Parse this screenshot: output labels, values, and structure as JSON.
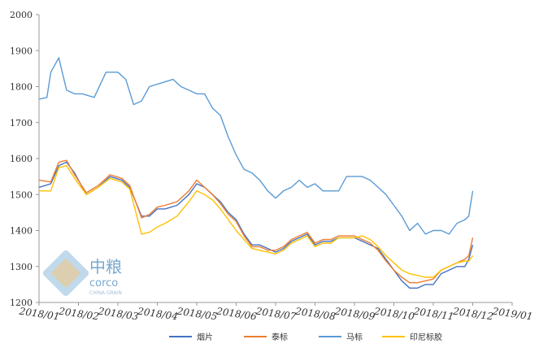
{
  "chart_data": {
    "type": "line",
    "ylim": [
      1200,
      2000
    ],
    "yticks": [
      1200,
      1300,
      1400,
      1500,
      1600,
      1700,
      1800,
      1900,
      2000
    ],
    "xticks": [
      "2018/01",
      "2018/02",
      "2018/03",
      "2018/04",
      "2018/05",
      "2018/06",
      "2018/07",
      "2018/08",
      "2018/09",
      "2018/10",
      "2018/11",
      "2018/12",
      "2019/01"
    ],
    "grid": false,
    "legend_position": "bottom",
    "series": [
      {
        "name": "烟片",
        "color": "#4472C4",
        "values": [
          [
            0,
            1520
          ],
          [
            0.3,
            1530
          ],
          [
            0.5,
            1580
          ],
          [
            0.7,
            1590
          ],
          [
            0.9,
            1560
          ],
          [
            1.2,
            1500
          ],
          [
            1.5,
            1520
          ],
          [
            1.8,
            1550
          ],
          [
            2.1,
            1540
          ],
          [
            2.3,
            1520
          ],
          [
            2.6,
            1440
          ],
          [
            2.8,
            1440
          ],
          [
            3.0,
            1460
          ],
          [
            3.2,
            1460
          ],
          [
            3.5,
            1470
          ],
          [
            3.8,
            1500
          ],
          [
            4.0,
            1530
          ],
          [
            4.2,
            1520
          ],
          [
            4.4,
            1500
          ],
          [
            4.6,
            1480
          ],
          [
            4.8,
            1450
          ],
          [
            5.0,
            1430
          ],
          [
            5.2,
            1390
          ],
          [
            5.4,
            1360
          ],
          [
            5.6,
            1360
          ],
          [
            5.8,
            1350
          ],
          [
            6.0,
            1340
          ],
          [
            6.2,
            1350
          ],
          [
            6.4,
            1370
          ],
          [
            6.6,
            1380
          ],
          [
            6.8,
            1390
          ],
          [
            7.0,
            1360
          ],
          [
            7.2,
            1370
          ],
          [
            7.4,
            1370
          ],
          [
            7.6,
            1380
          ],
          [
            7.8,
            1380
          ],
          [
            8.0,
            1380
          ],
          [
            8.2,
            1370
          ],
          [
            8.4,
            1360
          ],
          [
            8.6,
            1350
          ],
          [
            8.8,
            1320
          ],
          [
            9.0,
            1290
          ],
          [
            9.2,
            1260
          ],
          [
            9.4,
            1240
          ],
          [
            9.6,
            1240
          ],
          [
            9.8,
            1250
          ],
          [
            10.0,
            1250
          ],
          [
            10.2,
            1280
          ],
          [
            10.4,
            1290
          ],
          [
            10.6,
            1300
          ],
          [
            10.8,
            1300
          ],
          [
            10.9,
            1320
          ],
          [
            11.0,
            1360
          ]
        ]
      },
      {
        "name": "泰标",
        "color": "#ED7D31",
        "values": [
          [
            0,
            1540
          ],
          [
            0.3,
            1535
          ],
          [
            0.5,
            1590
          ],
          [
            0.7,
            1595
          ],
          [
            0.9,
            1555
          ],
          [
            1.2,
            1505
          ],
          [
            1.5,
            1525
          ],
          [
            1.8,
            1555
          ],
          [
            2.1,
            1545
          ],
          [
            2.3,
            1525
          ],
          [
            2.6,
            1435
          ],
          [
            2.8,
            1445
          ],
          [
            3.0,
            1465
          ],
          [
            3.2,
            1470
          ],
          [
            3.5,
            1480
          ],
          [
            3.8,
            1510
          ],
          [
            4.0,
            1540
          ],
          [
            4.2,
            1520
          ],
          [
            4.4,
            1500
          ],
          [
            4.6,
            1475
          ],
          [
            4.8,
            1445
          ],
          [
            5.0,
            1425
          ],
          [
            5.2,
            1385
          ],
          [
            5.4,
            1355
          ],
          [
            5.6,
            1355
          ],
          [
            5.8,
            1345
          ],
          [
            6.0,
            1345
          ],
          [
            6.2,
            1355
          ],
          [
            6.4,
            1375
          ],
          [
            6.6,
            1385
          ],
          [
            6.8,
            1395
          ],
          [
            7.0,
            1365
          ],
          [
            7.2,
            1375
          ],
          [
            7.4,
            1375
          ],
          [
            7.6,
            1385
          ],
          [
            7.8,
            1385
          ],
          [
            8.0,
            1385
          ],
          [
            8.2,
            1375
          ],
          [
            8.4,
            1365
          ],
          [
            8.6,
            1345
          ],
          [
            8.8,
            1315
          ],
          [
            9.0,
            1290
          ],
          [
            9.2,
            1270
          ],
          [
            9.4,
            1255
          ],
          [
            9.6,
            1255
          ],
          [
            9.8,
            1260
          ],
          [
            10.0,
            1265
          ],
          [
            10.2,
            1290
          ],
          [
            10.4,
            1300
          ],
          [
            10.6,
            1310
          ],
          [
            10.8,
            1320
          ],
          [
            10.9,
            1330
          ],
          [
            11.0,
            1380
          ]
        ]
      },
      {
        "name": "马标",
        "color": "#5B9BD5",
        "values": [
          [
            0,
            1765
          ],
          [
            0.2,
            1770
          ],
          [
            0.3,
            1840
          ],
          [
            0.5,
            1880
          ],
          [
            0.7,
            1790
          ],
          [
            0.9,
            1780
          ],
          [
            1.1,
            1780
          ],
          [
            1.4,
            1770
          ],
          [
            1.7,
            1840
          ],
          [
            2.0,
            1840
          ],
          [
            2.2,
            1820
          ],
          [
            2.4,
            1750
          ],
          [
            2.6,
            1760
          ],
          [
            2.8,
            1800
          ],
          [
            3.1,
            1810
          ],
          [
            3.4,
            1820
          ],
          [
            3.6,
            1800
          ],
          [
            3.8,
            1790
          ],
          [
            4.0,
            1780
          ],
          [
            4.2,
            1780
          ],
          [
            4.4,
            1740
          ],
          [
            4.6,
            1720
          ],
          [
            4.8,
            1660
          ],
          [
            5.0,
            1610
          ],
          [
            5.2,
            1570
          ],
          [
            5.4,
            1560
          ],
          [
            5.6,
            1540
          ],
          [
            5.8,
            1510
          ],
          [
            6.0,
            1490
          ],
          [
            6.2,
            1510
          ],
          [
            6.4,
            1520
          ],
          [
            6.6,
            1540
          ],
          [
            6.8,
            1520
          ],
          [
            7.0,
            1530
          ],
          [
            7.2,
            1510
          ],
          [
            7.4,
            1510
          ],
          [
            7.6,
            1510
          ],
          [
            7.8,
            1550
          ],
          [
            8.0,
            1550
          ],
          [
            8.2,
            1550
          ],
          [
            8.4,
            1540
          ],
          [
            8.6,
            1520
          ],
          [
            8.8,
            1500
          ],
          [
            9.0,
            1470
          ],
          [
            9.2,
            1440
          ],
          [
            9.4,
            1400
          ],
          [
            9.6,
            1420
          ],
          [
            9.8,
            1390
          ],
          [
            10.0,
            1400
          ],
          [
            10.2,
            1400
          ],
          [
            10.4,
            1390
          ],
          [
            10.6,
            1420
          ],
          [
            10.8,
            1430
          ],
          [
            10.9,
            1440
          ],
          [
            11.0,
            1510
          ]
        ]
      },
      {
        "name": "印尼标胶",
        "color": "#FFC000",
        "values": [
          [
            0,
            1510
          ],
          [
            0.3,
            1510
          ],
          [
            0.5,
            1575
          ],
          [
            0.7,
            1580
          ],
          [
            0.9,
            1545
          ],
          [
            1.2,
            1500
          ],
          [
            1.5,
            1520
          ],
          [
            1.8,
            1545
          ],
          [
            2.1,
            1535
          ],
          [
            2.3,
            1515
          ],
          [
            2.6,
            1390
          ],
          [
            2.8,
            1395
          ],
          [
            3.0,
            1410
          ],
          [
            3.2,
            1420
          ],
          [
            3.5,
            1440
          ],
          [
            3.8,
            1480
          ],
          [
            4.0,
            1510
          ],
          [
            4.2,
            1500
          ],
          [
            4.4,
            1485
          ],
          [
            4.6,
            1460
          ],
          [
            4.8,
            1430
          ],
          [
            5.0,
            1400
          ],
          [
            5.2,
            1375
          ],
          [
            5.4,
            1350
          ],
          [
            5.6,
            1345
          ],
          [
            5.8,
            1340
          ],
          [
            6.0,
            1335
          ],
          [
            6.2,
            1345
          ],
          [
            6.4,
            1365
          ],
          [
            6.6,
            1375
          ],
          [
            6.8,
            1385
          ],
          [
            7.0,
            1355
          ],
          [
            7.2,
            1365
          ],
          [
            7.4,
            1365
          ],
          [
            7.6,
            1380
          ],
          [
            7.8,
            1380
          ],
          [
            8.0,
            1380
          ],
          [
            8.2,
            1385
          ],
          [
            8.4,
            1375
          ],
          [
            8.6,
            1355
          ],
          [
            8.8,
            1330
          ],
          [
            9.0,
            1310
          ],
          [
            9.2,
            1290
          ],
          [
            9.4,
            1280
          ],
          [
            9.6,
            1275
          ],
          [
            9.8,
            1270
          ],
          [
            10.0,
            1270
          ],
          [
            10.2,
            1290
          ],
          [
            10.4,
            1300
          ],
          [
            10.6,
            1310
          ],
          [
            10.8,
            1315
          ],
          [
            10.9,
            1315
          ],
          [
            11.0,
            1330
          ]
        ]
      }
    ]
  },
  "watermark": {
    "cn_text": "中粮",
    "en_text": "corco",
    "sub_text": "CHINA GRAIN"
  }
}
